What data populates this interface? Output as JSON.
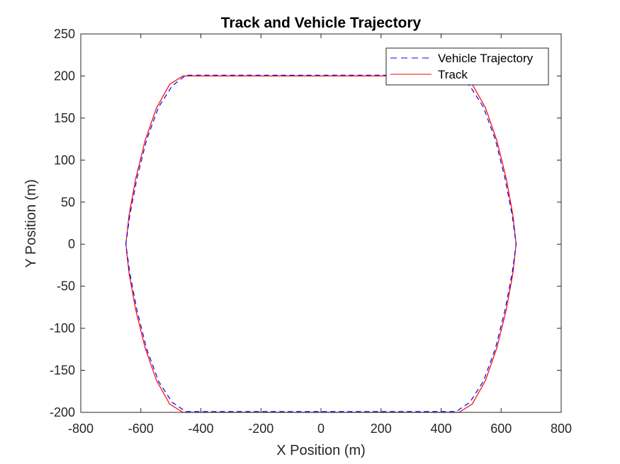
{
  "chart_data": {
    "type": "line",
    "title": "Track and Vehicle Trajectory",
    "xlabel": "X Position (m)",
    "ylabel": "Y Position (m)",
    "xlim": [
      -800,
      800
    ],
    "ylim": [
      -200,
      250
    ],
    "xticks": [
      -800,
      -600,
      -400,
      -200,
      0,
      200,
      400,
      600,
      800
    ],
    "yticks": [
      -200,
      -150,
      -100,
      -50,
      0,
      50,
      100,
      150,
      200,
      250
    ],
    "grid": false,
    "legend_position": "top-right",
    "series": [
      {
        "name": "Vehicle Trajectory",
        "style": "dashed",
        "color": "#0000ff",
        "x": [
          -450,
          0,
          450,
          496,
          541,
          581,
          613,
          637,
          650,
          650,
          637,
          613,
          581,
          541,
          496,
          450,
          0,
          -450,
          -496,
          -541,
          -581,
          -613,
          -637,
          -650,
          -650,
          -637,
          -613,
          -581,
          -541,
          -496,
          -450
        ],
        "y": [
          -199,
          -199,
          -199,
          -188,
          -163,
          -124,
          -78,
          -34,
          0,
          0,
          34,
          78,
          124,
          163,
          188,
          201,
          201,
          201,
          188,
          163,
          124,
          78,
          34,
          0,
          0,
          -34,
          -78,
          -124,
          -163,
          -188,
          -199
        ]
      },
      {
        "name": "Track",
        "style": "solid",
        "color": "#ff0000",
        "x": [
          -460,
          0,
          460,
          504,
          548,
          586,
          617,
          639,
          650,
          650,
          639,
          617,
          586,
          548,
          504,
          460,
          0,
          -460,
          -504,
          -548,
          -586,
          -617,
          -639,
          -650,
          -650,
          -639,
          -617,
          -586,
          -548,
          -504,
          -460
        ],
        "y": [
          -200,
          -200,
          -200,
          -190,
          -162,
          -123,
          -78,
          -35,
          0,
          0,
          35,
          78,
          123,
          162,
          190,
          200,
          200,
          200,
          190,
          162,
          123,
          78,
          35,
          0,
          0,
          -35,
          -78,
          -123,
          -162,
          -190,
          -200
        ]
      }
    ]
  }
}
